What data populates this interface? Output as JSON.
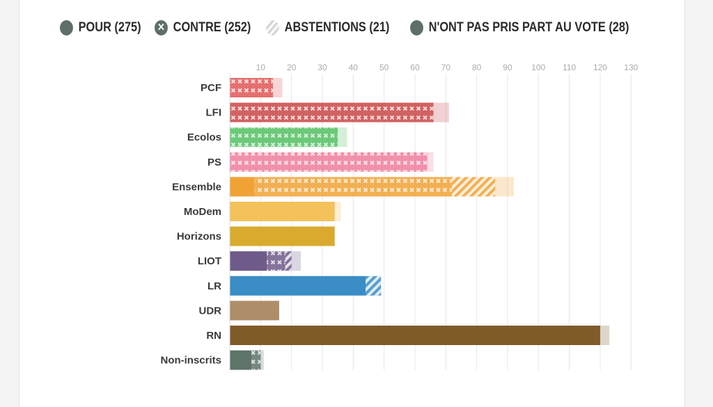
{
  "legend": [
    {
      "label": "POUR (275)",
      "icon": "solid-circle"
    },
    {
      "label": "CONTRE (252)",
      "icon": "cross-circle"
    },
    {
      "label": "ABSTENTIONS (21)",
      "icon": "striped-circle"
    },
    {
      "label": "N'ONT PAS PRIS PART AU VOTE (28)",
      "icon": "solid-circle"
    }
  ],
  "legend_color": "#5e6f67",
  "chart_data": {
    "type": "bar",
    "orientation": "horizontal",
    "stacked": true,
    "categories": [
      "PCF",
      "LFI",
      "Ecolos",
      "PS",
      "Ensemble",
      "MoDem",
      "Horizons",
      "LIOT",
      "LR",
      "UDR",
      "RN",
      "Non-inscrits"
    ],
    "colors": [
      "#e05656",
      "#c94646",
      "#52c062",
      "#ef7d9c",
      "#f0a235",
      "#f5c15a",
      "#d9aa2e",
      "#6f5b8a",
      "#3b8dc5",
      "#ae8d69",
      "#805b2a",
      "#5f7468"
    ],
    "series": [
      {
        "name": "Pour",
        "values": [
          0,
          0,
          0,
          0,
          8,
          34,
          34,
          12,
          44,
          16,
          120,
          7
        ]
      },
      {
        "name": "Contre",
        "values": [
          14,
          66,
          35,
          64,
          64,
          0,
          0,
          6,
          0,
          0,
          0,
          3
        ]
      },
      {
        "name": "Abstentions",
        "values": [
          0,
          0,
          0,
          0,
          14,
          0,
          0,
          2,
          5,
          0,
          0,
          0
        ]
      },
      {
        "name": "N'ont pas pris part au vote",
        "values": [
          3,
          5,
          3,
          2,
          6,
          2,
          0,
          3,
          0,
          0,
          3,
          1
        ]
      }
    ],
    "xticks": [
      10,
      20,
      30,
      40,
      50,
      60,
      70,
      80,
      90,
      100,
      110,
      120,
      130
    ],
    "xlim": [
      0,
      130
    ],
    "grid": true,
    "legend_position": "top"
  }
}
